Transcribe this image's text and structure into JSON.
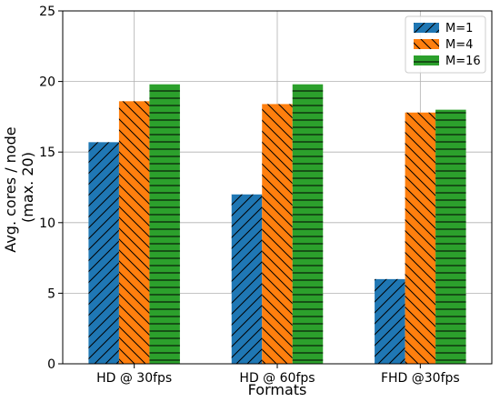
{
  "chart_data": {
    "type": "bar",
    "categories": [
      "HD @ 30fps",
      "HD @ 60fps",
      "FHD @30fps"
    ],
    "series": [
      {
        "name": "M=1",
        "color": "#1f77b4",
        "hatch": "diagonal",
        "values": [
          15.7,
          12.0,
          6.0
        ]
      },
      {
        "name": "M=4",
        "color": "#ff7f0e",
        "hatch": "backslash",
        "values": [
          18.6,
          18.4,
          17.8
        ]
      },
      {
        "name": "M=16",
        "color": "#2ca02c",
        "hatch": "horizontal",
        "values": [
          19.8,
          19.8,
          18.0
        ]
      }
    ],
    "xlabel": "Formats",
    "ylabel_lines": [
      "Avg. cores / node",
      "(max. 20)"
    ],
    "ylim": [
      0,
      25
    ],
    "yticks": [
      "0",
      "5",
      "10",
      "15",
      "20",
      "25"
    ],
    "grid": true,
    "legend_position": "top-right"
  }
}
